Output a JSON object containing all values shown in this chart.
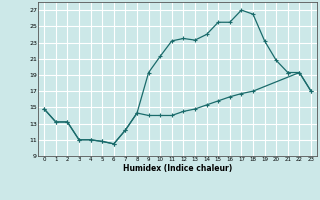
{
  "xlabel": "Humidex (Indice chaleur)",
  "background_color": "#cce8e8",
  "grid_color": "#ffffff",
  "line_color": "#1a6b6b",
  "xlim": [
    -0.5,
    23.5
  ],
  "ylim": [
    9,
    28
  ],
  "xticks": [
    0,
    1,
    2,
    3,
    4,
    5,
    6,
    7,
    8,
    9,
    10,
    11,
    12,
    13,
    14,
    15,
    16,
    17,
    18,
    19,
    20,
    21,
    22,
    23
  ],
  "yticks": [
    9,
    11,
    13,
    15,
    17,
    19,
    21,
    23,
    25,
    27
  ],
  "line1_x": [
    0,
    1,
    2,
    3,
    4,
    5,
    6,
    7,
    8,
    9,
    10,
    11,
    12,
    13,
    14,
    15,
    16,
    17,
    18,
    19,
    20,
    21
  ],
  "line1_y": [
    14.8,
    13.2,
    13.2,
    11.0,
    11.0,
    10.8,
    10.5,
    12.2,
    14.3,
    19.3,
    21.3,
    23.2,
    23.5,
    23.3,
    24.0,
    25.5,
    25.5,
    27.0,
    26.5,
    23.2,
    20.8,
    19.3
  ],
  "line2_x": [
    0,
    1,
    2,
    3,
    4,
    5,
    6,
    7,
    8,
    9,
    10,
    11,
    12,
    13,
    14,
    15,
    16,
    17,
    18,
    22,
    23
  ],
  "line2_y": [
    14.8,
    13.2,
    13.2,
    11.0,
    11.0,
    10.8,
    10.5,
    12.2,
    14.3,
    14.0,
    14.0,
    14.0,
    14.5,
    14.8,
    15.3,
    15.8,
    16.3,
    16.7,
    17.0,
    19.3,
    17.0
  ],
  "line3_x": [
    21,
    22,
    23
  ],
  "line3_y": [
    19.3,
    19.3,
    17.0
  ]
}
